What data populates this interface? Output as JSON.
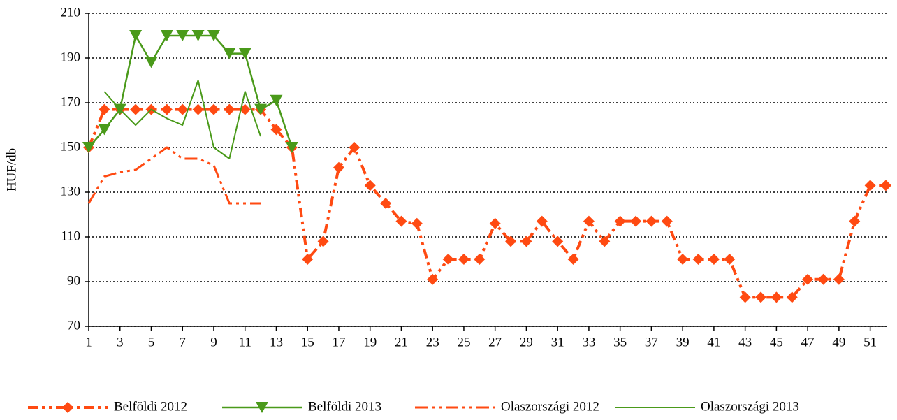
{
  "chart_data": {
    "type": "line",
    "y_label": "HUF/db",
    "x": [
      1,
      2,
      3,
      4,
      5,
      6,
      7,
      8,
      9,
      10,
      11,
      12,
      13,
      14,
      15,
      16,
      17,
      18,
      19,
      20,
      21,
      22,
      23,
      24,
      25,
      26,
      27,
      28,
      29,
      30,
      31,
      32,
      33,
      34,
      35,
      36,
      37,
      38,
      39,
      40,
      41,
      42,
      43,
      44,
      45,
      46,
      47,
      48,
      49,
      50,
      51,
      52
    ],
    "xlim": [
      1,
      52
    ],
    "xticks": [
      1,
      3,
      5,
      7,
      9,
      11,
      13,
      15,
      17,
      19,
      21,
      23,
      25,
      27,
      29,
      31,
      33,
      35,
      37,
      39,
      41,
      43,
      45,
      47,
      49,
      51
    ],
    "ylim": [
      70,
      210
    ],
    "yticks": [
      70,
      90,
      110,
      130,
      150,
      170,
      190,
      210
    ],
    "grid": true,
    "legend": "bottom",
    "series": [
      {
        "name": "Belföldi 2012",
        "color": "#ff4a12",
        "width": 4,
        "dash": "14 6 4 6 4 6",
        "marker": "diamond",
        "values": [
          150,
          167,
          167,
          167,
          167,
          167,
          167,
          167,
          167,
          167,
          167,
          167,
          158,
          150,
          100,
          108,
          141,
          150,
          133,
          125,
          117,
          116,
          91,
          100,
          100,
          100,
          116,
          108,
          108,
          117,
          108,
          100,
          117,
          108,
          117,
          117,
          117,
          117,
          100,
          100,
          100,
          100,
          83,
          83,
          83,
          83,
          91,
          91,
          91,
          117,
          133,
          133
        ]
      },
      {
        "name": "Belföldi 2013",
        "color": "#4a9a1a",
        "width": 2.5,
        "marker": "triangle",
        "values": [
          150,
          158,
          167,
          200,
          188,
          200,
          200,
          200,
          200,
          192,
          192,
          167,
          171,
          150,
          null,
          null,
          null,
          null,
          null,
          null,
          null,
          null,
          null,
          null,
          null,
          null,
          null,
          null,
          null,
          null,
          null,
          null,
          null,
          null,
          null,
          null,
          null,
          null,
          null,
          null,
          null,
          null,
          null,
          null,
          null,
          null,
          null,
          null,
          null,
          null,
          null,
          null
        ]
      },
      {
        "name": "Olaszországi 2012",
        "color": "#ff4a12",
        "width": 3,
        "dash": "18 6 4 6 4 6",
        "values": [
          125,
          137,
          139,
          140,
          145,
          150,
          145,
          145,
          142,
          125,
          125,
          125,
          null,
          null,
          null,
          null,
          null,
          null,
          null,
          null,
          null,
          null,
          null,
          null,
          null,
          null,
          null,
          null,
          null,
          null,
          null,
          null,
          null,
          null,
          null,
          null,
          null,
          null,
          null,
          null,
          null,
          null,
          null,
          null,
          null,
          null,
          null,
          null,
          null,
          null,
          null,
          null
        ]
      },
      {
        "name": "Olaszországi 2013",
        "color": "#4a9a1a",
        "width": 2,
        "values": [
          null,
          175,
          167,
          160,
          167,
          163,
          160,
          180,
          150,
          145,
          175,
          155,
          null,
          null,
          null,
          null,
          null,
          null,
          null,
          null,
          null,
          null,
          null,
          null,
          null,
          null,
          null,
          null,
          null,
          null,
          null,
          null,
          null,
          null,
          null,
          null,
          null,
          null,
          null,
          null,
          null,
          null,
          null,
          null,
          null,
          null,
          null,
          null,
          null,
          null,
          null,
          null
        ]
      }
    ]
  }
}
